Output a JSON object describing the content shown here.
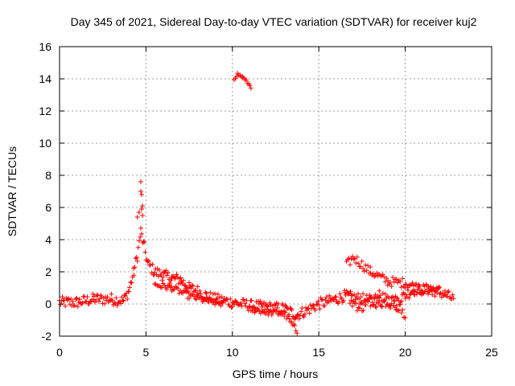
{
  "chart_data": {
    "type": "scatter",
    "title": "Day 345 of 2021, Sidereal Day-to-day VTEC variation (SDTVAR) for receiver kuj2",
    "xlabel": "GPS time / hours",
    "ylabel": "SDTVAR / TECUs",
    "xlim": [
      0,
      25
    ],
    "ylim": [
      -2,
      16
    ],
    "xticks": [
      "0",
      "5",
      "10",
      "15",
      "20",
      "25"
    ],
    "yticks": [
      "-2",
      "0",
      "2",
      "4",
      "6",
      "8",
      "10",
      "12",
      "14",
      "16"
    ],
    "grid": true,
    "marker": "plus",
    "color": "#ff0000",
    "series": [
      {
        "name": "SDTVAR",
        "trace_knots": [
          [
            0.0,
            0.1
          ],
          [
            1.0,
            0.1
          ],
          [
            2.0,
            0.3
          ],
          [
            3.0,
            0.3
          ],
          [
            3.7,
            0.2
          ],
          [
            4.0,
            0.8
          ],
          [
            4.3,
            2.0
          ],
          [
            4.5,
            3.0
          ],
          [
            4.7,
            4.5
          ],
          [
            4.9,
            3.5
          ],
          [
            5.1,
            2.5
          ],
          [
            5.5,
            2.0
          ],
          [
            6.0,
            1.8
          ],
          [
            6.5,
            1.6
          ],
          [
            7.0,
            1.5
          ],
          [
            7.5,
            1.0
          ],
          [
            8.0,
            0.8
          ],
          [
            8.5,
            0.5
          ],
          [
            9.0,
            0.3
          ],
          [
            10.0,
            0.1
          ],
          [
            11.0,
            -0.1
          ],
          [
            12.0,
            -0.2
          ],
          [
            13.0,
            -0.3
          ],
          [
            13.7,
            -0.7
          ],
          [
            14.3,
            -0.4
          ],
          [
            15.0,
            0.0
          ],
          [
            16.0,
            0.3
          ],
          [
            16.5,
            0.5
          ],
          [
            17.5,
            0.3
          ],
          [
            18.5,
            0.1
          ],
          [
            19.5,
            0.2
          ],
          [
            20.5,
            0.9
          ],
          [
            21.5,
            0.9
          ],
          [
            22.3,
            0.6
          ],
          [
            22.8,
            0.3
          ]
        ],
        "spread": 0.35,
        "extra_segments": [
          {
            "name": "upper-branch-17-22h",
            "knots": [
              [
                16.6,
                2.4
              ],
              [
                17.0,
                2.9
              ],
              [
                18.0,
                2.0
              ],
              [
                19.0,
                1.4
              ],
              [
                20.0,
                1.3
              ],
              [
                21.0,
                0.9
              ],
              [
                22.0,
                0.8
              ]
            ],
            "spread": 0.3
          },
          {
            "name": "lower-branch-17-20h",
            "knots": [
              [
                16.8,
                0.2
              ],
              [
                17.5,
                -0.2
              ],
              [
                18.5,
                0.5
              ],
              [
                19.5,
                -0.1
              ],
              [
                20.0,
                -0.7
              ]
            ],
            "spread": 0.4
          },
          {
            "name": "secondary-branch-5-9h",
            "knots": [
              [
                5.5,
                1.2
              ],
              [
                6.5,
                1.0
              ],
              [
                7.5,
                0.5
              ],
              [
                8.5,
                0.2
              ],
              [
                9.5,
                0.0
              ]
            ],
            "spread": 0.2
          },
          {
            "name": "secondary-branch-11-14h",
            "knots": [
              [
                11.0,
                -0.3
              ],
              [
                12.0,
                -0.5
              ],
              [
                13.0,
                -0.6
              ],
              [
                13.6,
                -1.5
              ],
              [
                13.8,
                -1.8
              ]
            ],
            "spread": 0.2
          },
          {
            "name": "arc-10-11h",
            "knots": [
              [
                10.1,
                14.0
              ],
              [
                10.3,
                14.3
              ],
              [
                10.6,
                14.1
              ],
              [
                11.0,
                13.6
              ],
              [
                11.1,
                13.4
              ]
            ],
            "spread": 0.08
          }
        ],
        "peak_points": [
          [
            4.7,
            7.6
          ],
          [
            4.7,
            7.0
          ],
          [
            4.75,
            6.8
          ],
          [
            4.8,
            6.1
          ],
          [
            4.75,
            5.9
          ],
          [
            4.6,
            5.7
          ],
          [
            4.5,
            5.4
          ],
          [
            4.8,
            5.5
          ]
        ]
      }
    ]
  }
}
